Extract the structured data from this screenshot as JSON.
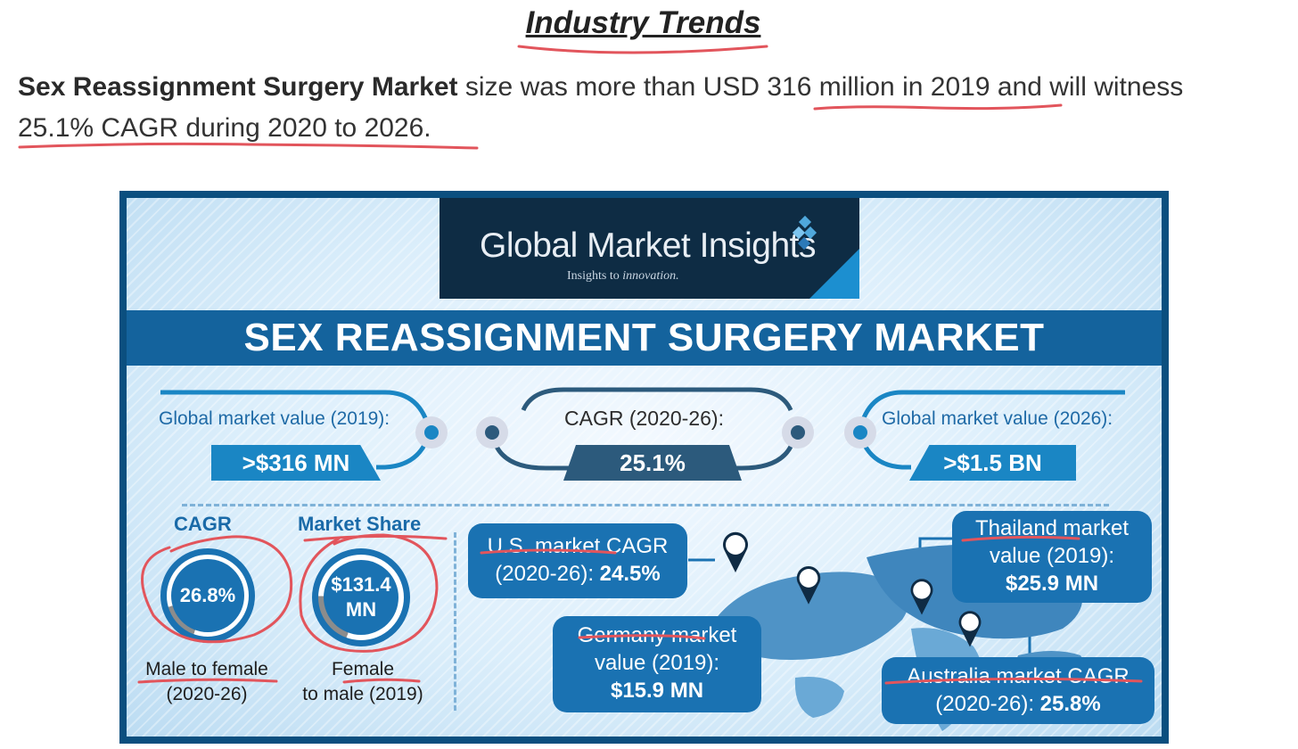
{
  "page": {
    "heading": "Industry Trends",
    "intro": {
      "bold": "Sex Reassignment Surgery Market",
      "text_line1": " size was more than USD 316 million in 2019 and will witness",
      "text_line2": "25.1% CAGR during 2020 to 2026."
    }
  },
  "infographic": {
    "brand": "Global Market Insights",
    "tagline_a": "Insights to ",
    "tagline_b": "innovation.",
    "title": "SEX REASSIGNMENT SURGERY MARKET",
    "stats": {
      "left_label": "Global market value (2019):",
      "left_value": ">$316 MN",
      "center_label": "CAGR (2020-26):",
      "center_value": "25.1%",
      "right_label": "Global market value (2026):",
      "right_value": ">$1.5 BN"
    },
    "cagr": {
      "heading": "CAGR",
      "value": "26.8%",
      "caption_1": "Male to female",
      "caption_2": "(2020-26)",
      "ring_fraction": 0.85
    },
    "share": {
      "heading": "Market Share",
      "value_1": "$131.4",
      "value_2": "MN",
      "caption_1": "Female",
      "caption_2": "to male (2019)",
      "ring_fraction": 0.8
    },
    "callouts": {
      "us_1": "U.S. market CAGR",
      "us_2a": "(2020-26): ",
      "us_2b": "24.5%",
      "de_1": "Germany market",
      "de_2": "value (2019):",
      "de_3": "$15.9 MN",
      "th_1": "Thailand market",
      "th_2": "value (2019):",
      "th_3": "$25.9 MN",
      "au_1": "Australia market CAGR",
      "au_2a": "(2020-26): ",
      "au_2b": "25.8%"
    },
    "colors": {
      "navy": "#0e2c44",
      "banner_blue": "#14639d",
      "accent_blue": "#1a86c4",
      "annotation_red": "#e2555c"
    }
  }
}
